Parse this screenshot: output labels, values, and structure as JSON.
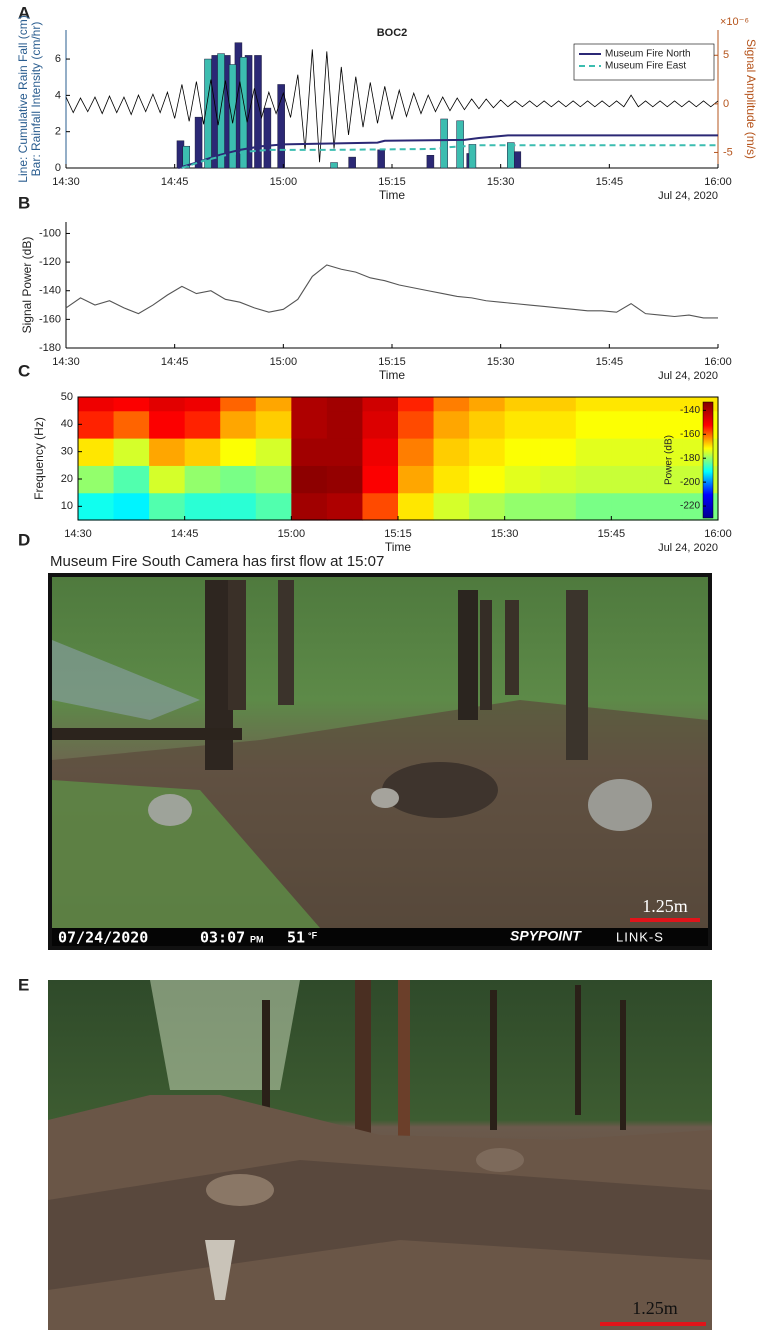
{
  "panel_labels": [
    "A",
    "B",
    "C",
    "D",
    "E"
  ],
  "chart_data": [
    {
      "type": "bar",
      "title": "BOC2",
      "ylabel": [
        "Line: Cumulative Rain Fall (cm)",
        "Bar: Rainfall Intensity (cm/hr)"
      ],
      "y2label": "Signal Amplitude (m/s)",
      "y2_multiplier": "×10⁻⁶",
      "xlabel": "Time",
      "date_label": "Jul 24, 2020",
      "xlim": [
        870,
        960
      ],
      "xticks": [
        {
          "value": 870,
          "label": "14:30"
        },
        {
          "value": 885,
          "label": "14:45"
        },
        {
          "value": 900,
          "label": "15:00"
        },
        {
          "value": 915,
          "label": "15:15"
        },
        {
          "value": 930,
          "label": "15:30"
        },
        {
          "value": 945,
          "label": "15:45"
        },
        {
          "value": 960,
          "label": "16:00"
        }
      ],
      "ylim": [
        0,
        7.6
      ],
      "yticks": [
        0,
        2,
        4,
        6
      ],
      "y2lim": [
        -6.6,
        7.6
      ],
      "y2ticks": [
        -5,
        0,
        5
      ],
      "legend": "upper right",
      "series": [
        {
          "name": "Museum Fire North",
          "color": "#2b2875",
          "line_style": "solid",
          "bar_x": [
            885.8,
            888.3,
            890.6,
            892.2,
            893.8,
            895.2,
            896.5,
            897.8,
            899.7,
            909.5,
            913.5,
            920.3,
            925.8,
            932.3
          ],
          "bar_values": [
            1.5,
            2.8,
            6.2,
            6.2,
            6.9,
            6.2,
            6.2,
            3.3,
            4.6,
            0.6,
            1.0,
            0.7,
            0.8,
            0.9
          ],
          "line_x": [
            885.5,
            888,
            891,
            894,
            897,
            900,
            913,
            914,
            925,
            927,
            931,
            960
          ],
          "line_values": [
            0,
            0.3,
            0.7,
            1.0,
            1.2,
            1.3,
            1.4,
            1.5,
            1.55,
            1.65,
            1.8,
            1.8
          ]
        },
        {
          "name": "Museum Fire East",
          "color": "#3cbdb0",
          "line_style": "dashed",
          "bar_x": [
            886.6,
            889.6,
            891.4,
            893.0,
            894.5,
            907.0,
            922.2,
            924.4,
            926.1,
            931.4
          ],
          "bar_values": [
            1.2,
            6.0,
            6.3,
            5.7,
            6.1,
            0.3,
            2.7,
            2.6,
            1.3,
            1.4
          ],
          "line_x": [
            886,
            889,
            892,
            895,
            898,
            907,
            921,
            923,
            925,
            927,
            960
          ],
          "line_values": [
            0,
            0.4,
            0.7,
            0.9,
            1.0,
            1.0,
            1.05,
            1.15,
            1.2,
            1.25,
            1.25
          ]
        }
      ],
      "trace": {
        "color": "#000000",
        "axis": "y2",
        "x": [
          870,
          871,
          872,
          873,
          874,
          875,
          876,
          877,
          878,
          879,
          880,
          881,
          882,
          883,
          884,
          885,
          886,
          887,
          888,
          889,
          890,
          891,
          892,
          893,
          894,
          895,
          896,
          897,
          898,
          899,
          900,
          901,
          902,
          903,
          904,
          905,
          906,
          907,
          908,
          909,
          910,
          911,
          912,
          913,
          914,
          915,
          916,
          917,
          918,
          919,
          920,
          921,
          922,
          923,
          924,
          925,
          926,
          927,
          928,
          929,
          930,
          931,
          932,
          933,
          934,
          935,
          936,
          937,
          938,
          939,
          940,
          941,
          942,
          943,
          944,
          945,
          946,
          947,
          948,
          949,
          950,
          951,
          952,
          953,
          954,
          955,
          956,
          957,
          958,
          959,
          960
        ],
        "values": [
          0.7,
          -0.9,
          0.6,
          -0.8,
          0.7,
          -1.0,
          0.8,
          -0.9,
          0.7,
          -1.1,
          0.9,
          -0.8,
          1.0,
          -0.9,
          1.2,
          -1.5,
          2.0,
          -1.8,
          2.3,
          -2.1,
          2.5,
          -2.2,
          2.4,
          -2.0,
          2.3,
          -1.9,
          1.6,
          -1.4,
          1.2,
          -1.0,
          1.1,
          -1.4,
          3.0,
          -4.8,
          5.6,
          -6.0,
          5.4,
          -4.6,
          3.8,
          -3.2,
          2.8,
          -2.4,
          2.2,
          -2.0,
          1.8,
          -1.6,
          1.4,
          -1.3,
          1.1,
          -1.0,
          0.9,
          -0.8,
          0.7,
          -0.7,
          0.6,
          -0.6,
          0.5,
          -0.5,
          0.5,
          -0.4,
          0.4,
          -0.3,
          0.3,
          -0.3,
          0.3,
          -0.3,
          0.3,
          -0.3,
          0.3,
          -0.3,
          0.3,
          -0.3,
          0.3,
          -0.3,
          0.3,
          -0.3,
          0.3,
          -0.3,
          0.9,
          -0.3,
          0.3,
          -0.3,
          0.3,
          -0.3,
          0.3,
          -0.3,
          0.3,
          -0.3,
          0.3,
          -0.3,
          0.3
        ]
      }
    },
    {
      "type": "line",
      "ylabel": "Signal Power (dB)",
      "xlabel": "Time",
      "date_label": "Jul 24, 2020",
      "xlim": [
        870,
        960
      ],
      "xticks": [
        {
          "value": 870,
          "label": "14:30"
        },
        {
          "value": 885,
          "label": "14:45"
        },
        {
          "value": 900,
          "label": "15:00"
        },
        {
          "value": 915,
          "label": "15:15"
        },
        {
          "value": 930,
          "label": "15:30"
        },
        {
          "value": 945,
          "label": "15:45"
        },
        {
          "value": 960,
          "label": "16:00"
        }
      ],
      "ylim": [
        -180,
        -92
      ],
      "yticks": [
        -180,
        -160,
        -140,
        -120,
        -100
      ],
      "color": "#555555",
      "x": [
        870,
        872,
        874,
        876,
        878,
        880,
        882,
        884,
        886,
        888,
        890,
        892,
        894,
        896,
        898,
        900,
        902,
        904,
        906,
        908,
        910,
        912,
        914,
        916,
        918,
        920,
        922,
        924,
        926,
        928,
        930,
        932,
        934,
        936,
        938,
        940,
        942,
        944,
        946,
        948,
        950,
        952,
        954,
        956,
        958,
        960
      ],
      "values": [
        -152,
        -145,
        -150,
        -147,
        -152,
        -156,
        -150,
        -143,
        -137,
        -142,
        -140,
        -146,
        -148,
        -152,
        -155,
        -153,
        -146,
        -130,
        -122,
        -125,
        -127,
        -131,
        -133,
        -136,
        -138,
        -140,
        -142,
        -144,
        -145,
        -147,
        -148,
        -149,
        -150,
        -151,
        -152,
        -153,
        -154,
        -154,
        -155,
        -149,
        -156,
        -157,
        -158,
        -157,
        -159,
        -159
      ]
    },
    {
      "type": "heatmap",
      "ylabel": "Frequency (Hz)",
      "xlabel": "Time",
      "date_label": "Jul 24, 2020",
      "xlim": [
        870,
        960
      ],
      "xticks": [
        {
          "value": 870,
          "label": "14:30"
        },
        {
          "value": 885,
          "label": "14:45"
        },
        {
          "value": 900,
          "label": "15:00"
        },
        {
          "value": 915,
          "label": "15:15"
        },
        {
          "value": 930,
          "label": "15:30"
        },
        {
          "value": 945,
          "label": "15:45"
        },
        {
          "value": 960,
          "label": "16:00"
        }
      ],
      "ylim": [
        5,
        50
      ],
      "yticks": [
        10,
        20,
        30,
        40,
        50
      ],
      "xbins": [
        870,
        875,
        880,
        885,
        890,
        895,
        900,
        905,
        910,
        915,
        920,
        925,
        930,
        935,
        940,
        945,
        950,
        955,
        960
      ],
      "ybins": [
        5,
        15,
        25,
        35,
        45,
        50
      ],
      "z": [
        [
          -190,
          -192,
          -185,
          -188,
          -188,
          -185,
          -138,
          -140,
          -158,
          -170,
          -175,
          -178,
          -180,
          -180,
          -182,
          -182,
          -182,
          -182
        ],
        [
          -180,
          -185,
          -175,
          -180,
          -182,
          -180,
          -135,
          -136,
          -152,
          -165,
          -170,
          -172,
          -174,
          -175,
          -176,
          -176,
          -176,
          -176
        ],
        [
          -170,
          -175,
          -165,
          -168,
          -172,
          -175,
          -138,
          -138,
          -150,
          -162,
          -168,
          -170,
          -172,
          -172,
          -174,
          -174,
          -174,
          -174
        ],
        [
          -155,
          -160,
          -152,
          -155,
          -165,
          -168,
          -140,
          -138,
          -147,
          -158,
          -165,
          -168,
          -170,
          -170,
          -172,
          -172,
          -172,
          -172
        ],
        [
          -150,
          -152,
          -148,
          -150,
          -160,
          -165,
          -140,
          -138,
          -145,
          -155,
          -162,
          -165,
          -168,
          -168,
          -170,
          -170,
          -170,
          -170
        ]
      ],
      "colormap": [
        "#00008f",
        "#0000ff",
        "#00ffff",
        "#ffff00",
        "#ff0000",
        "#800000"
      ],
      "colorbar": {
        "label": "Power (dB)",
        "clim": [
          -230,
          -133
        ],
        "ticks": [
          -220,
          -200,
          -180,
          -160,
          -140
        ]
      }
    }
  ],
  "photos": [
    {
      "caption": "Museum Fire South Camera has first flow at 15:07",
      "overlay": [
        "07/24/2020",
        "03:07",
        "PM",
        "51",
        "°F"
      ],
      "brand": "SPYPOINT",
      "model": "LINK-S",
      "scale_label": "1.25m"
    },
    {
      "scale_label": "1.25m"
    }
  ]
}
